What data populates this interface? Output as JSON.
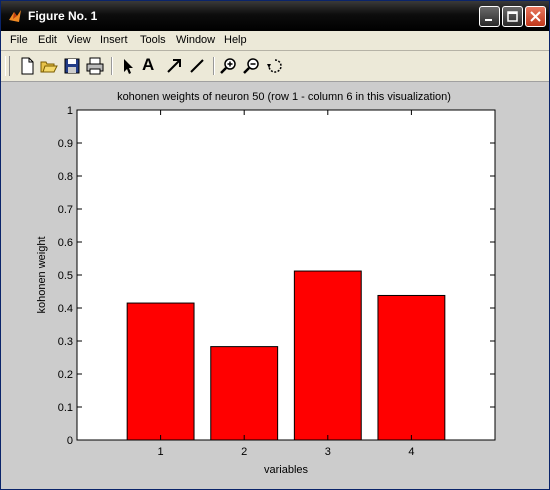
{
  "window": {
    "title": "Figure No. 1"
  },
  "menu": {
    "items": [
      "File",
      "Edit",
      "View",
      "Insert",
      "Tools",
      "Window",
      "Help"
    ]
  },
  "toolbar": {
    "icons": [
      "new-figure-icon",
      "open-file-icon",
      "save-icon",
      "print-icon",
      "select-arrow-icon",
      "insert-text-icon",
      "insert-arrow-icon",
      "insert-line-icon",
      "zoom-in-icon",
      "zoom-out-icon",
      "rotate-3d-icon"
    ],
    "text_tool_label": "A"
  },
  "chart_data": {
    "type": "bar",
    "title": "kohonen weights of neuron 50 (row 1 - column 6 in this visualization)",
    "xlabel": "variables",
    "ylabel": "kohonen weight",
    "categories": [
      "1",
      "2",
      "3",
      "4"
    ],
    "values": [
      0.415,
      0.283,
      0.512,
      0.438
    ],
    "ylim": [
      0,
      1
    ],
    "yticks": [
      "0",
      "0.1",
      "0.2",
      "0.3",
      "0.4",
      "0.5",
      "0.6",
      "0.7",
      "0.8",
      "0.9",
      "1"
    ],
    "bar_color": "#ff0000",
    "grid": false
  }
}
